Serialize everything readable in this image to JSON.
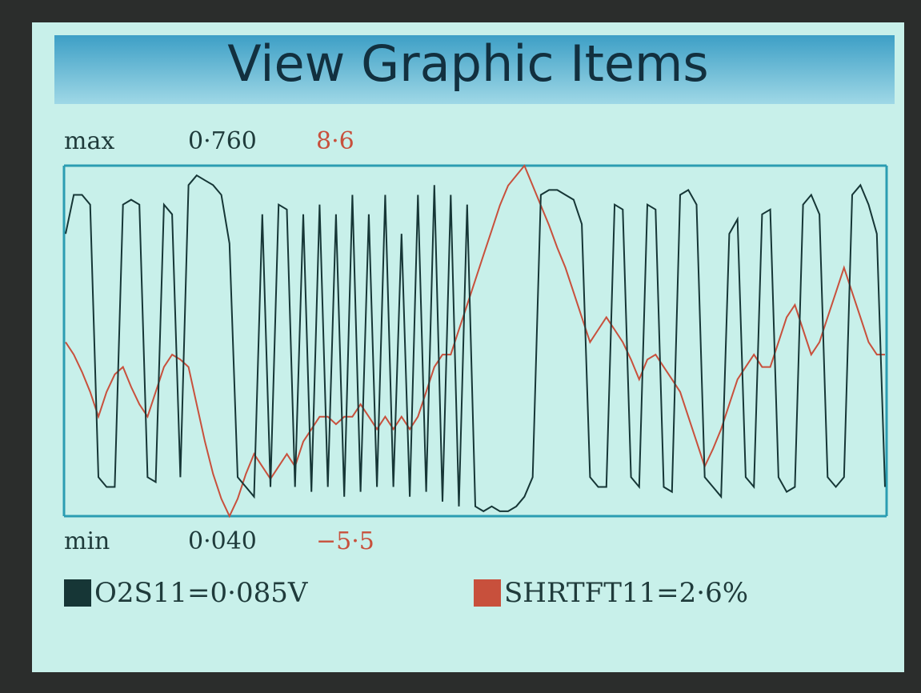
{
  "chart_data": {
    "type": "line",
    "title": "View Graphic Items",
    "max_label": "max",
    "min_label": "min",
    "ylim": [
      0.04,
      0.76
    ],
    "yticks": [
      {
        "value": 0.76,
        "label": "0·760"
      },
      {
        "value": 0.04,
        "label": "0·040"
      }
    ],
    "y2lim": [
      -5.5,
      8.6
    ],
    "y2ticks": [
      {
        "value": 8.6,
        "label": "8·6"
      },
      {
        "value": -5.5,
        "label": "−5·5"
      }
    ],
    "series": [
      {
        "name": "O2S11=0·085V",
        "color": "#163636",
        "values": [
          0.62,
          0.7,
          0.7,
          0.68,
          0.12,
          0.1,
          0.1,
          0.68,
          0.69,
          0.68,
          0.12,
          0.11,
          0.68,
          0.66,
          0.12,
          0.72,
          0.74,
          0.73,
          0.72,
          0.7,
          0.6,
          0.12,
          0.1,
          0.08,
          0.66,
          0.1,
          0.68,
          0.67,
          0.1,
          0.66,
          0.09,
          0.68,
          0.1,
          0.66,
          0.08,
          0.7,
          0.09,
          0.66,
          0.1,
          0.7,
          0.1,
          0.62,
          0.08,
          0.7,
          0.09,
          0.72,
          0.07,
          0.7,
          0.06,
          0.68,
          0.06,
          0.05,
          0.06,
          0.05,
          0.05,
          0.06,
          0.08,
          0.12,
          0.7,
          0.71,
          0.71,
          0.7,
          0.69,
          0.64,
          0.12,
          0.1,
          0.1,
          0.68,
          0.67,
          0.12,
          0.1,
          0.68,
          0.67,
          0.1,
          0.09,
          0.7,
          0.71,
          0.68,
          0.12,
          0.1,
          0.08,
          0.62,
          0.65,
          0.12,
          0.1,
          0.66,
          0.67,
          0.12,
          0.09,
          0.1,
          0.68,
          0.7,
          0.66,
          0.12,
          0.1,
          0.12,
          0.7,
          0.72,
          0.68,
          0.62,
          0.1
        ]
      },
      {
        "name": "SHRTFT11=2·6%",
        "color": "#c8503c",
        "axis": "y2",
        "values": [
          1.5,
          1.0,
          0.3,
          -0.5,
          -1.5,
          -0.5,
          0.2,
          0.5,
          -0.3,
          -1.0,
          -1.5,
          -0.5,
          0.5,
          1.0,
          0.8,
          0.5,
          -1.0,
          -2.5,
          -3.8,
          -4.8,
          -5.5,
          -4.8,
          -3.8,
          -3.0,
          -3.5,
          -4.0,
          -3.5,
          -3.0,
          -3.5,
          -2.5,
          -2.0,
          -1.5,
          -1.5,
          -1.8,
          -1.5,
          -1.5,
          -1.0,
          -1.5,
          -2.0,
          -1.5,
          -2.0,
          -1.5,
          -2.0,
          -1.5,
          -0.5,
          0.5,
          1.0,
          1.0,
          2.0,
          3.0,
          4.0,
          5.0,
          6.0,
          7.0,
          7.8,
          8.2,
          8.6,
          7.8,
          7.0,
          6.2,
          5.3,
          4.5,
          3.5,
          2.5,
          1.5,
          2.0,
          2.5,
          2.0,
          1.5,
          0.8,
          0.0,
          0.8,
          1.0,
          0.5,
          0.0,
          -0.5,
          -1.5,
          -2.5,
          -3.5,
          -2.8,
          -2.0,
          -1.0,
          0.0,
          0.5,
          1.0,
          0.5,
          0.5,
          1.5,
          2.5,
          3.0,
          2.0,
          1.0,
          1.5,
          2.5,
          3.5,
          4.5,
          3.5,
          2.5,
          1.5,
          1.0,
          1.0
        ]
      }
    ]
  }
}
